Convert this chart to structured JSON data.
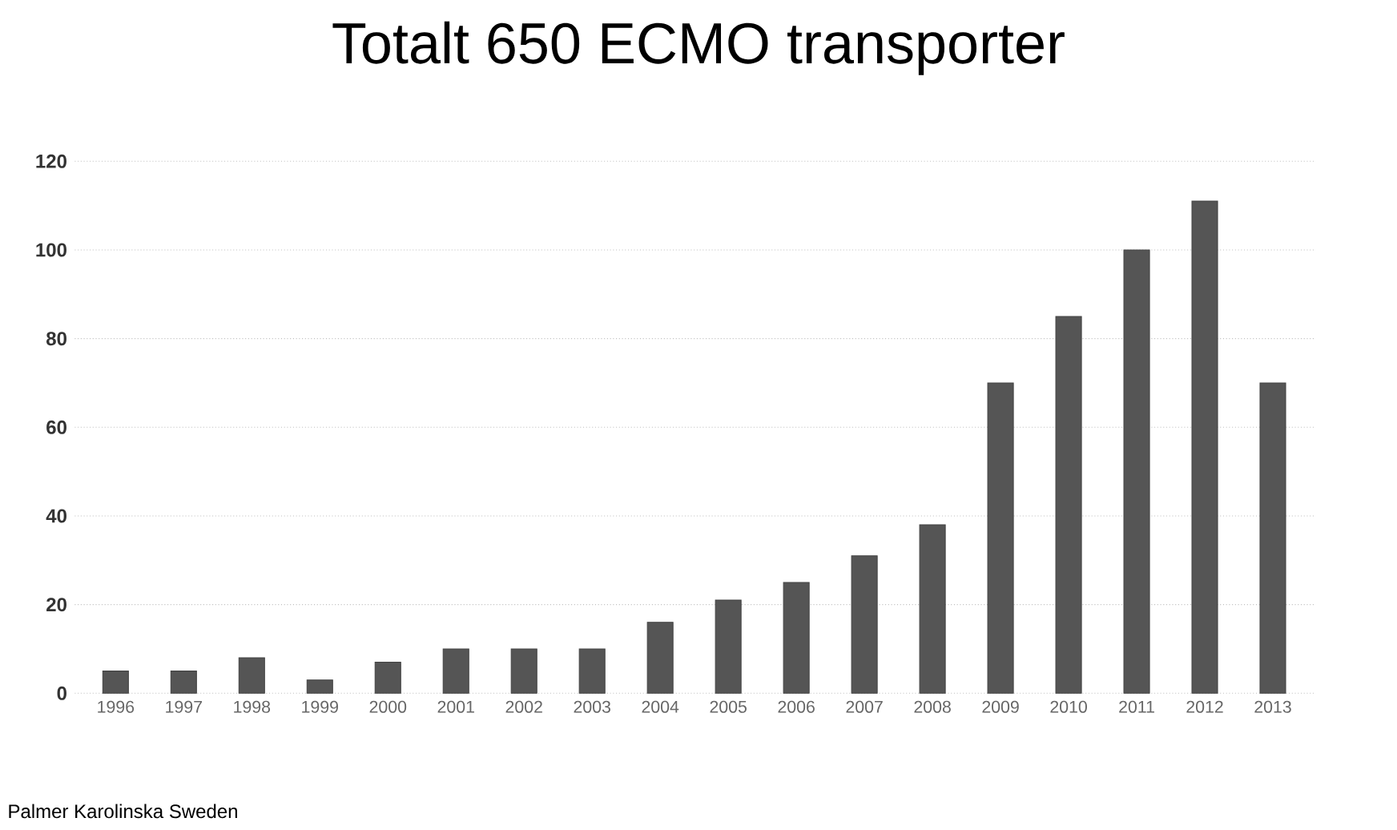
{
  "chart_data": {
    "type": "bar",
    "title": "Totalt 650 ECMO transporter",
    "categories": [
      "1996",
      "1997",
      "1998",
      "1999",
      "2000",
      "2001",
      "2002",
      "2003",
      "2004",
      "2005",
      "2006",
      "2007",
      "2008",
      "2009",
      "2010",
      "2011",
      "2012",
      "2013"
    ],
    "values": [
      5,
      5,
      8,
      3,
      7,
      10,
      10,
      10,
      16,
      21,
      25,
      31,
      38,
      70,
      85,
      100,
      111,
      70
    ],
    "color": "#555555",
    "ylim": [
      0,
      120
    ],
    "yticks": [
      0,
      20,
      40,
      60,
      80,
      100,
      120
    ],
    "grid": "y",
    "annotations": [
      "Palmer Karolinska Sweden"
    ]
  }
}
